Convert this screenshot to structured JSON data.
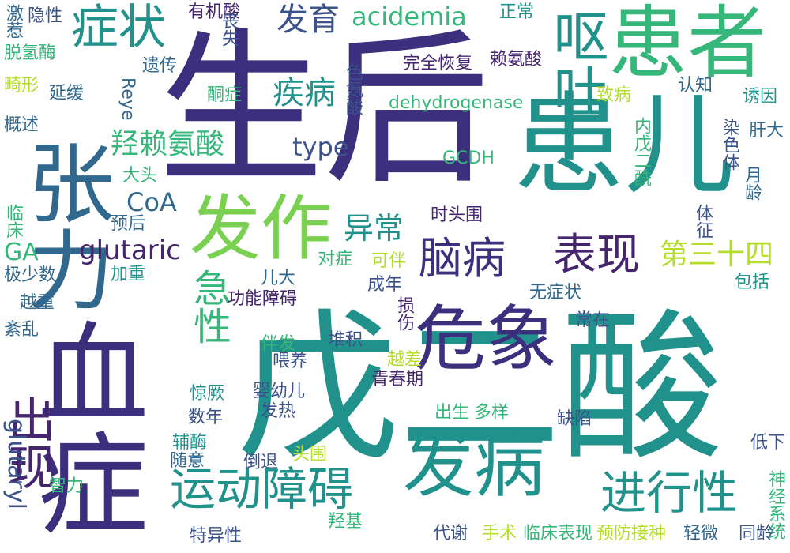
{
  "palette": {
    "indigo": "#3b2f7e",
    "purple": "#46256f",
    "blue": "#3b528b",
    "steel": "#31688e",
    "teal": "#21918c",
    "cyan": "#2a8f8a",
    "green": "#35b779",
    "lime": "#7ad151",
    "yellow": "#b5de2b"
  },
  "words": [
    {
      "text": "生后",
      "color": "indigo"
    },
    {
      "text": "戊二酸",
      "color": "teal"
    },
    {
      "text": "患儿",
      "color": "teal"
    },
    {
      "text": "患者",
      "color": "green"
    },
    {
      "text": "血症",
      "color": "indigo"
    },
    {
      "text": "张力",
      "color": "steel"
    },
    {
      "text": "发作",
      "color": "lime"
    },
    {
      "text": "危象",
      "color": "indigo"
    },
    {
      "text": "发病",
      "color": "teal"
    },
    {
      "text": "症状",
      "color": "teal"
    },
    {
      "text": "呕吐",
      "color": "teal"
    },
    {
      "text": "出现",
      "color": "purple"
    },
    {
      "text": "运动障碍",
      "color": "teal"
    },
    {
      "text": "进行性",
      "color": "teal"
    },
    {
      "text": "脑病",
      "color": "indigo"
    },
    {
      "text": "表现",
      "color": "purple"
    },
    {
      "text": "急性",
      "color": "green"
    },
    {
      "text": "羟赖氨酸",
      "color": "green"
    },
    {
      "text": "发育",
      "color": "blue"
    },
    {
      "text": "疾病",
      "color": "teal"
    },
    {
      "text": "异常",
      "color": "teal"
    },
    {
      "text": "第三十四",
      "color": "yellow"
    },
    {
      "text": "acidemia",
      "color": "green"
    },
    {
      "text": "glutaric",
      "color": "purple"
    },
    {
      "text": "type",
      "color": "blue"
    },
    {
      "text": "CoA",
      "color": "steel"
    },
    {
      "text": "GA",
      "color": "green"
    },
    {
      "text": "glutaryl",
      "color": "blue"
    },
    {
      "text": "dehydrogenase",
      "color": "green"
    },
    {
      "text": "GCDH",
      "color": "green"
    },
    {
      "text": "Reye",
      "color": "steel"
    },
    {
      "text": "激惹",
      "color": "steel"
    },
    {
      "text": "隐性",
      "color": "blue"
    },
    {
      "text": "有机酸",
      "color": "purple"
    },
    {
      "text": "正常",
      "color": "teal"
    },
    {
      "text": "丧失",
      "color": "blue"
    },
    {
      "text": "完全恢复",
      "color": "purple"
    },
    {
      "text": "赖氨酸",
      "color": "purple"
    },
    {
      "text": "脱氢酶",
      "color": "green"
    },
    {
      "text": "遗传",
      "color": "steel"
    },
    {
      "text": "认知",
      "color": "steel"
    },
    {
      "text": "畸形",
      "color": "yellow"
    },
    {
      "text": "延缓",
      "color": "steel"
    },
    {
      "text": "酮症",
      "color": "green"
    },
    {
      "text": "色氨酸",
      "color": "blue"
    },
    {
      "text": "致病",
      "color": "yellow"
    },
    {
      "text": "内戊二酰",
      "color": "green"
    },
    {
      "text": "诱因",
      "color": "teal"
    },
    {
      "text": "概述",
      "color": "steel"
    },
    {
      "text": "染色体",
      "color": "blue"
    },
    {
      "text": "肝大",
      "color": "steel"
    },
    {
      "text": "月龄",
      "color": "steel"
    },
    {
      "text": "大头",
      "color": "green"
    },
    {
      "text": "临床",
      "color": "green"
    },
    {
      "text": "预后",
      "color": "steel"
    },
    {
      "text": "体征",
      "color": "blue"
    },
    {
      "text": "时头围",
      "color": "purple"
    },
    {
      "text": "对症",
      "color": "green"
    },
    {
      "text": "可伴",
      "color": "yellow"
    },
    {
      "text": "加重",
      "color": "teal"
    },
    {
      "text": "极少数",
      "color": "steel"
    },
    {
      "text": "儿大",
      "color": "steel"
    },
    {
      "text": "成年",
      "color": "blue"
    },
    {
      "text": "包括",
      "color": "teal"
    },
    {
      "text": "越重",
      "color": "steel"
    },
    {
      "text": "功能障碍",
      "color": "purple"
    },
    {
      "text": "无症状",
      "color": "steel"
    },
    {
      "text": "损伤",
      "color": "purple"
    },
    {
      "text": "常在",
      "color": "blue"
    },
    {
      "text": "紊乱",
      "color": "steel"
    },
    {
      "text": "伴发",
      "color": "green"
    },
    {
      "text": "堆积",
      "color": "blue"
    },
    {
      "text": "越差",
      "color": "yellow"
    },
    {
      "text": "喂养",
      "color": "blue"
    },
    {
      "text": "青春期",
      "color": "purple"
    },
    {
      "text": "惊厥",
      "color": "teal"
    },
    {
      "text": "婴幼儿",
      "color": "blue"
    },
    {
      "text": "发热",
      "color": "blue"
    },
    {
      "text": "出生",
      "color": "green"
    },
    {
      "text": "多样",
      "color": "green"
    },
    {
      "text": "数年",
      "color": "blue"
    },
    {
      "text": "缺陷",
      "color": "blue"
    },
    {
      "text": "辅酶",
      "color": "teal"
    },
    {
      "text": "低下",
      "color": "blue"
    },
    {
      "text": "随意",
      "color": "steel"
    },
    {
      "text": "头围",
      "color": "yellow"
    },
    {
      "text": "倒退",
      "color": "blue"
    },
    {
      "text": "神经系统",
      "color": "green"
    },
    {
      "text": "智力",
      "color": "green"
    },
    {
      "text": "羟基",
      "color": "green"
    },
    {
      "text": "代谢",
      "color": "blue"
    },
    {
      "text": "手术",
      "color": "yellow"
    },
    {
      "text": "临床表现",
      "color": "green"
    },
    {
      "text": "预防接种",
      "color": "yellow"
    },
    {
      "text": "轻微",
      "color": "steel"
    },
    {
      "text": "同龄",
      "color": "blue"
    },
    {
      "text": "特异性",
      "color": "blue"
    }
  ]
}
